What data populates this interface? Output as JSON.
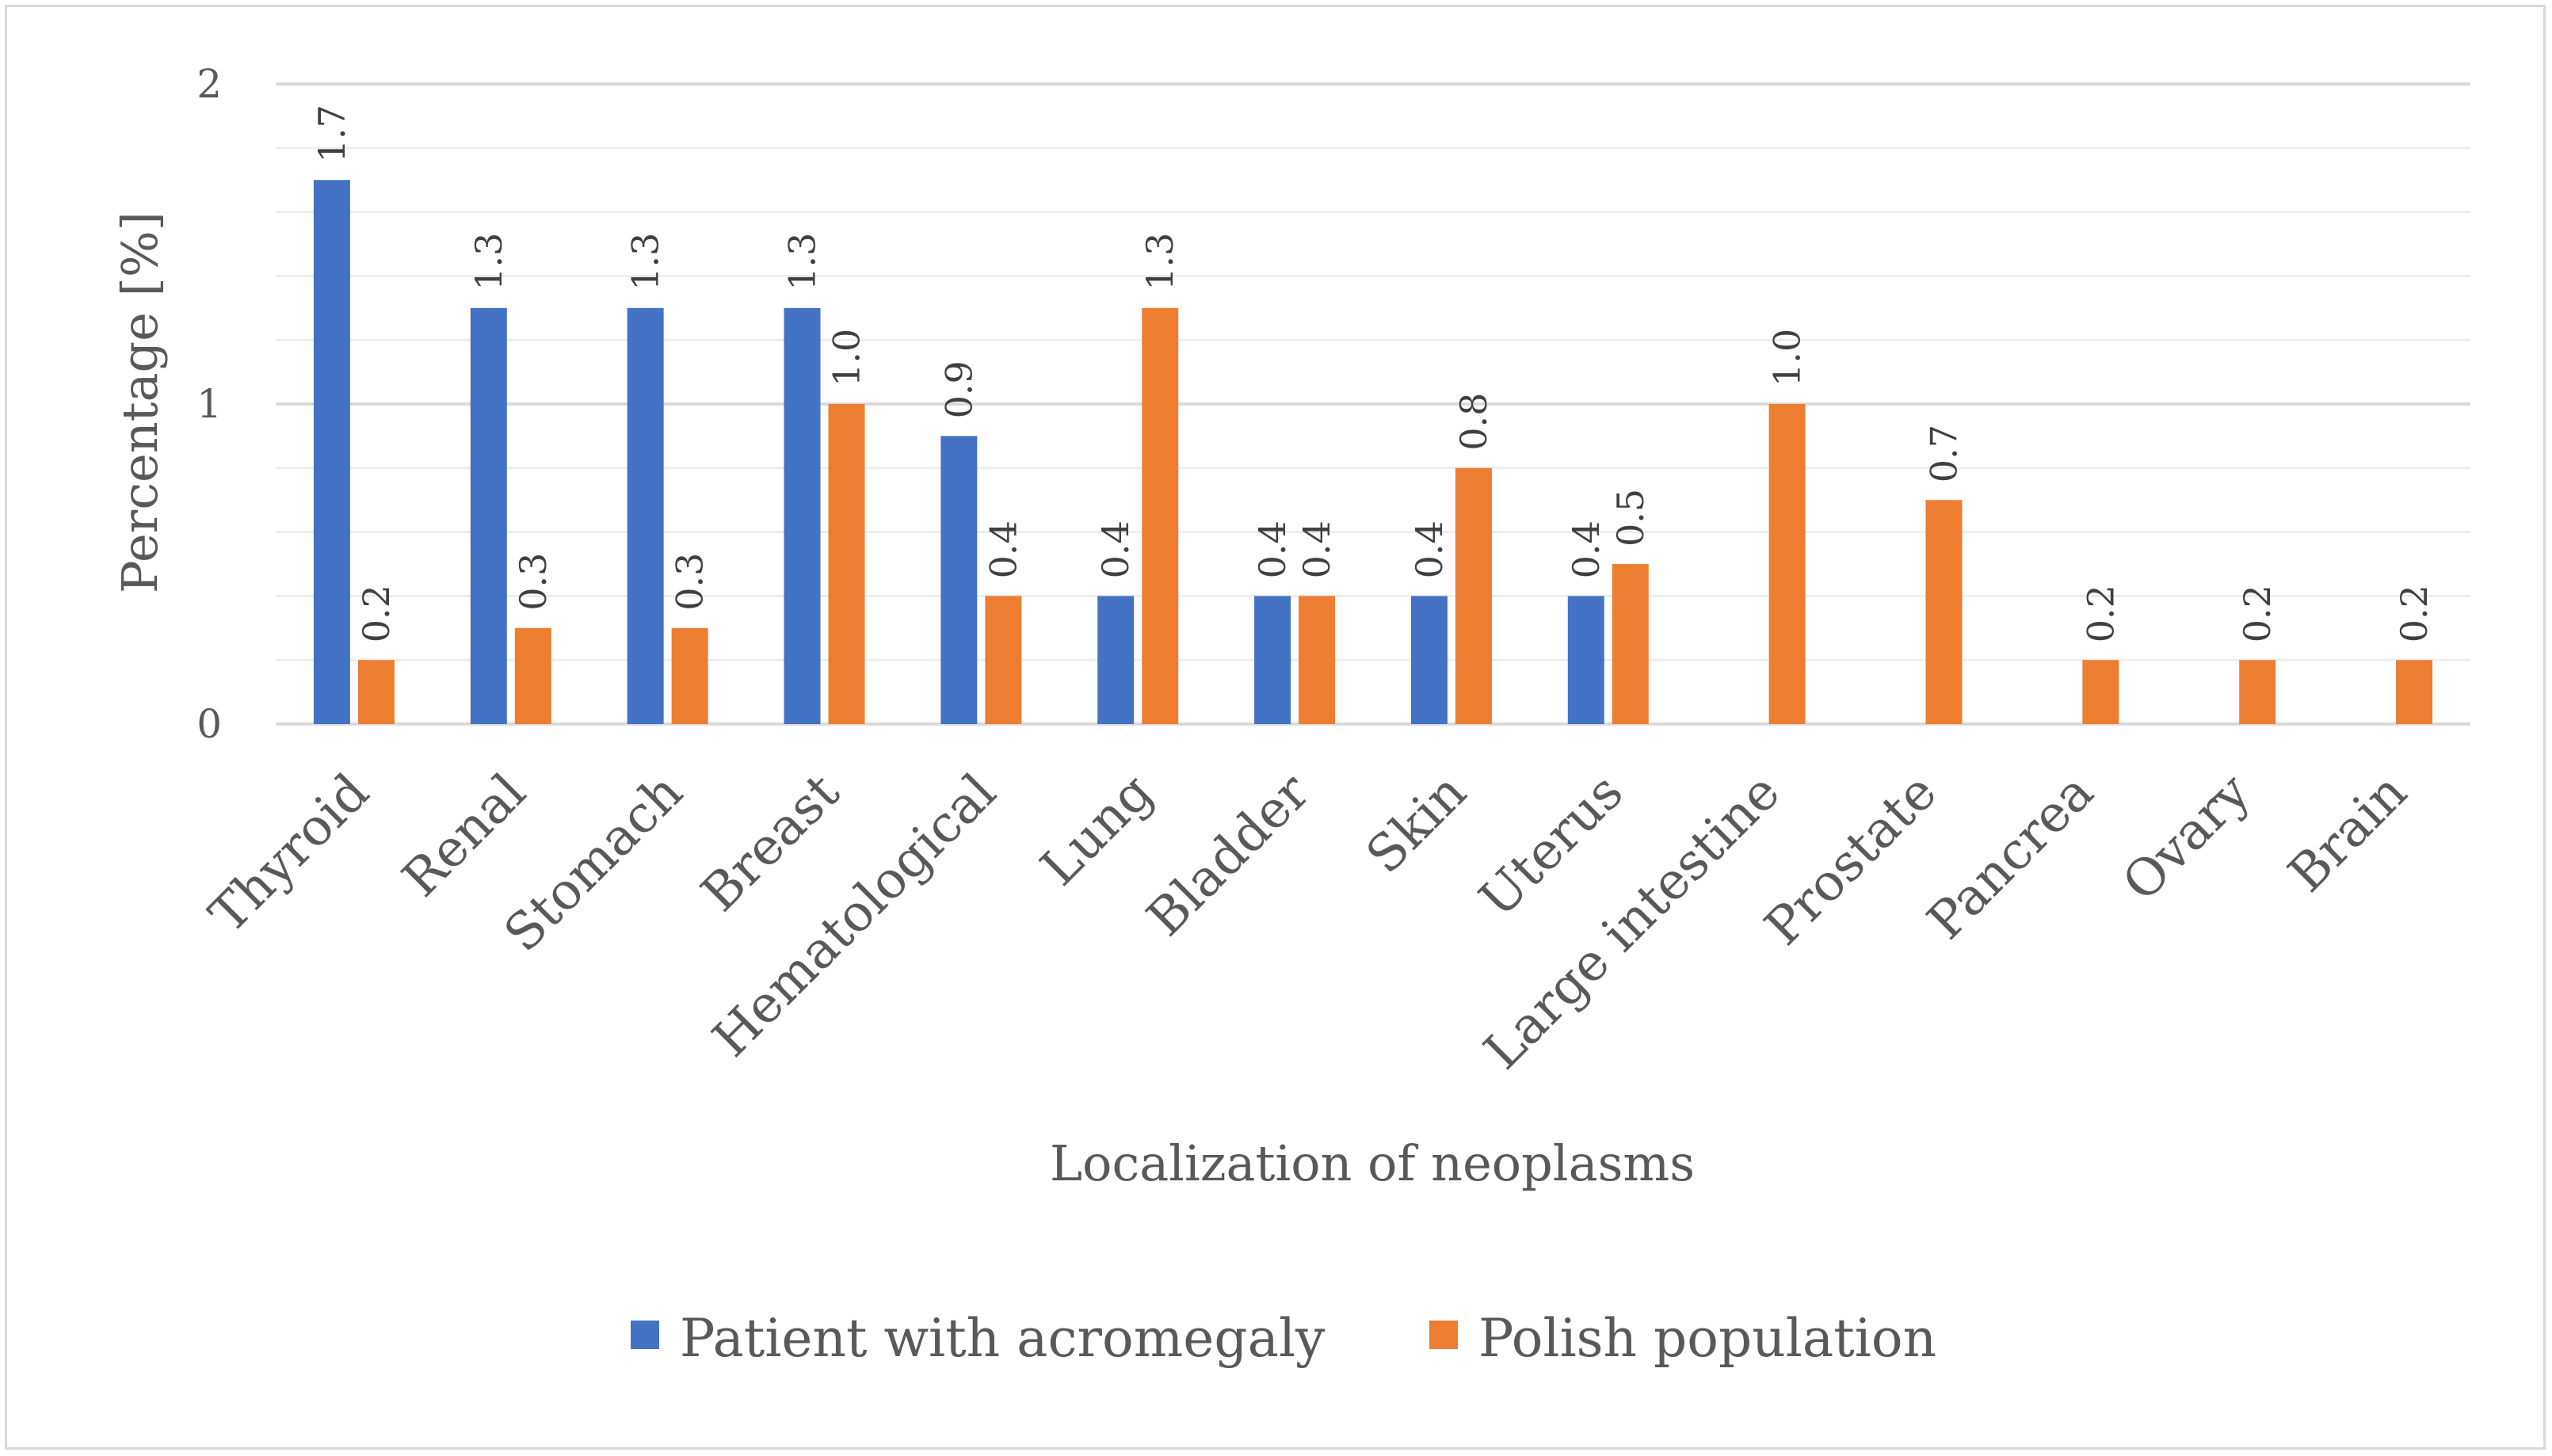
{
  "chart_data": {
    "type": "bar",
    "title": "",
    "xlabel": "Localization of neoplasms",
    "ylabel": "Percentage [%]",
    "ylim": [
      0,
      2
    ],
    "yticks": [
      0,
      1,
      2
    ],
    "minor_gridlines": 0.2,
    "grid": true,
    "legend_position": "bottom",
    "categories": [
      "Thyroid",
      "Renal",
      "Stomach",
      "Breast",
      "Hematological",
      "Lung",
      "Bladder",
      "Skin",
      "Uterus",
      "Large intestine",
      "Prostate",
      "Pancrea",
      "Ovary",
      "Brain"
    ],
    "series": [
      {
        "name": "Patient with acromegaly",
        "color": "#4472c4",
        "values": [
          1.7,
          1.3,
          1.3,
          1.3,
          0.9,
          0.4,
          0.4,
          0.4,
          0.4,
          null,
          null,
          null,
          null,
          null
        ],
        "labels": [
          "1.7",
          "1.3",
          "1.3",
          "1.3",
          "0.9",
          "0.4",
          "0.4",
          "0.4",
          "0.4",
          null,
          null,
          null,
          null,
          null
        ]
      },
      {
        "name": "Polish population",
        "color": "#ed7d31",
        "values": [
          0.2,
          0.3,
          0.3,
          1.0,
          0.4,
          1.3,
          0.4,
          0.8,
          0.5,
          1.0,
          0.7,
          0.2,
          0.2,
          0.2
        ],
        "labels": [
          "0.2",
          "0.3",
          "0.3",
          "1.0",
          "0.4",
          "1.3",
          "0.4",
          "0.8",
          "0.5",
          "1.0",
          "0.7",
          "0.2",
          "0.2",
          "0.2"
        ]
      }
    ]
  }
}
